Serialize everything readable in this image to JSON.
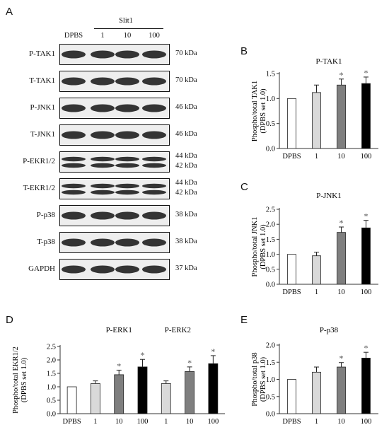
{
  "panel_A": {
    "letter": "A",
    "group_label": "Slit1",
    "lanes": [
      "DPBS",
      "1",
      "10",
      "100"
    ],
    "blots": [
      {
        "label": "P-TAK1",
        "kda": [
          "70 kDa"
        ],
        "bands": 1
      },
      {
        "label": "T-TAK1",
        "kda": [
          "70 kDa"
        ],
        "bands": 1
      },
      {
        "label": "P-JNK1",
        "kda": [
          "46 kDa"
        ],
        "bands": 1
      },
      {
        "label": "T-JNK1",
        "kda": [
          "46 kDa"
        ],
        "bands": 1
      },
      {
        "label": "P-EKR1/2",
        "kda": [
          "44 kDa",
          "42 kDa"
        ],
        "bands": 2
      },
      {
        "label": "T-EKR1/2",
        "kda": [
          "44 kDa",
          "42 kDa"
        ],
        "bands": 2
      },
      {
        "label": "P-p38",
        "kda": [
          "38 kDa"
        ],
        "bands": 1
      },
      {
        "label": "T-p38",
        "kda": [
          "38 kDa"
        ],
        "bands": 1
      },
      {
        "label": "GAPDH",
        "kda": [
          "37 kDa"
        ],
        "bands": 1
      }
    ]
  },
  "chart_data": [
    {
      "id": "B",
      "letter": "B",
      "type": "bar",
      "title": "P-TAK1",
      "ylabel_lines": [
        "Phospho/total TAK1",
        "(DPBS set 1.0)"
      ],
      "categories": [
        "DPBS",
        "1",
        "10",
        "100"
      ],
      "values": [
        1.0,
        1.12,
        1.27,
        1.3
      ],
      "errors": [
        0,
        0.15,
        0.12,
        0.13
      ],
      "significant": [
        false,
        false,
        true,
        true
      ],
      "colors": [
        "#ffffff",
        "#d9d9d9",
        "#7f7f7f",
        "#000000"
      ],
      "ylim": [
        0,
        1.5
      ],
      "yticks": [
        "0.0",
        "0.5",
        "1.0",
        "1.5"
      ],
      "star": "*"
    },
    {
      "id": "C",
      "letter": "C",
      "type": "bar",
      "title": "P-JNK1",
      "ylabel_lines": [
        "Phospho/total JNK1",
        "(DPBS set 1.0)"
      ],
      "categories": [
        "DPBS",
        "1",
        "10",
        "100"
      ],
      "values": [
        1.0,
        0.95,
        1.73,
        1.88
      ],
      "errors": [
        0,
        0.12,
        0.18,
        0.25
      ],
      "significant": [
        false,
        false,
        true,
        true
      ],
      "colors": [
        "#ffffff",
        "#d9d9d9",
        "#7f7f7f",
        "#000000"
      ],
      "ylim": [
        0,
        2.5
      ],
      "yticks": [
        "0.0",
        "0.5",
        "1.0",
        "1.5",
        "2.0",
        "2.5"
      ],
      "star": "*"
    },
    {
      "id": "D",
      "letter": "D",
      "type": "bar",
      "group_titles": [
        "P-ERK1",
        "P-ERK2"
      ],
      "ylabel_lines": [
        "Phospho/total EKR1/2",
        "(DPBS set 1.0)"
      ],
      "categories": [
        "DPBS",
        "1",
        "10",
        "100",
        "1",
        "10",
        "100"
      ],
      "values": [
        1.0,
        1.12,
        1.45,
        1.74,
        1.12,
        1.57,
        1.86
      ],
      "errors": [
        0,
        0.1,
        0.17,
        0.28,
        0.1,
        0.17,
        0.3
      ],
      "significant": [
        false,
        false,
        true,
        true,
        false,
        true,
        true
      ],
      "colors": [
        "#ffffff",
        "#d9d9d9",
        "#7f7f7f",
        "#000000",
        "#d9d9d9",
        "#7f7f7f",
        "#000000"
      ],
      "ylim": [
        0,
        2.5
      ],
      "yticks": [
        "0.0",
        "0.5",
        "1.0",
        "1.5",
        "2.0",
        "2.5"
      ],
      "star": "*"
    },
    {
      "id": "E",
      "letter": "E",
      "type": "bar",
      "title": "P-p38",
      "ylabel_lines": [
        "Phospho/total p38",
        "(DPBS set 1.0)"
      ],
      "categories": [
        "DPBS",
        "1",
        "10",
        "100"
      ],
      "values": [
        1.0,
        1.21,
        1.36,
        1.62
      ],
      "errors": [
        0,
        0.15,
        0.13,
        0.17
      ],
      "significant": [
        false,
        false,
        true,
        true
      ],
      "colors": [
        "#ffffff",
        "#d9d9d9",
        "#7f7f7f",
        "#000000"
      ],
      "ylim": [
        0,
        2.0
      ],
      "yticks": [
        "0.0",
        "0.5",
        "1.0",
        "1.5",
        "2.0"
      ],
      "star": "*"
    }
  ]
}
